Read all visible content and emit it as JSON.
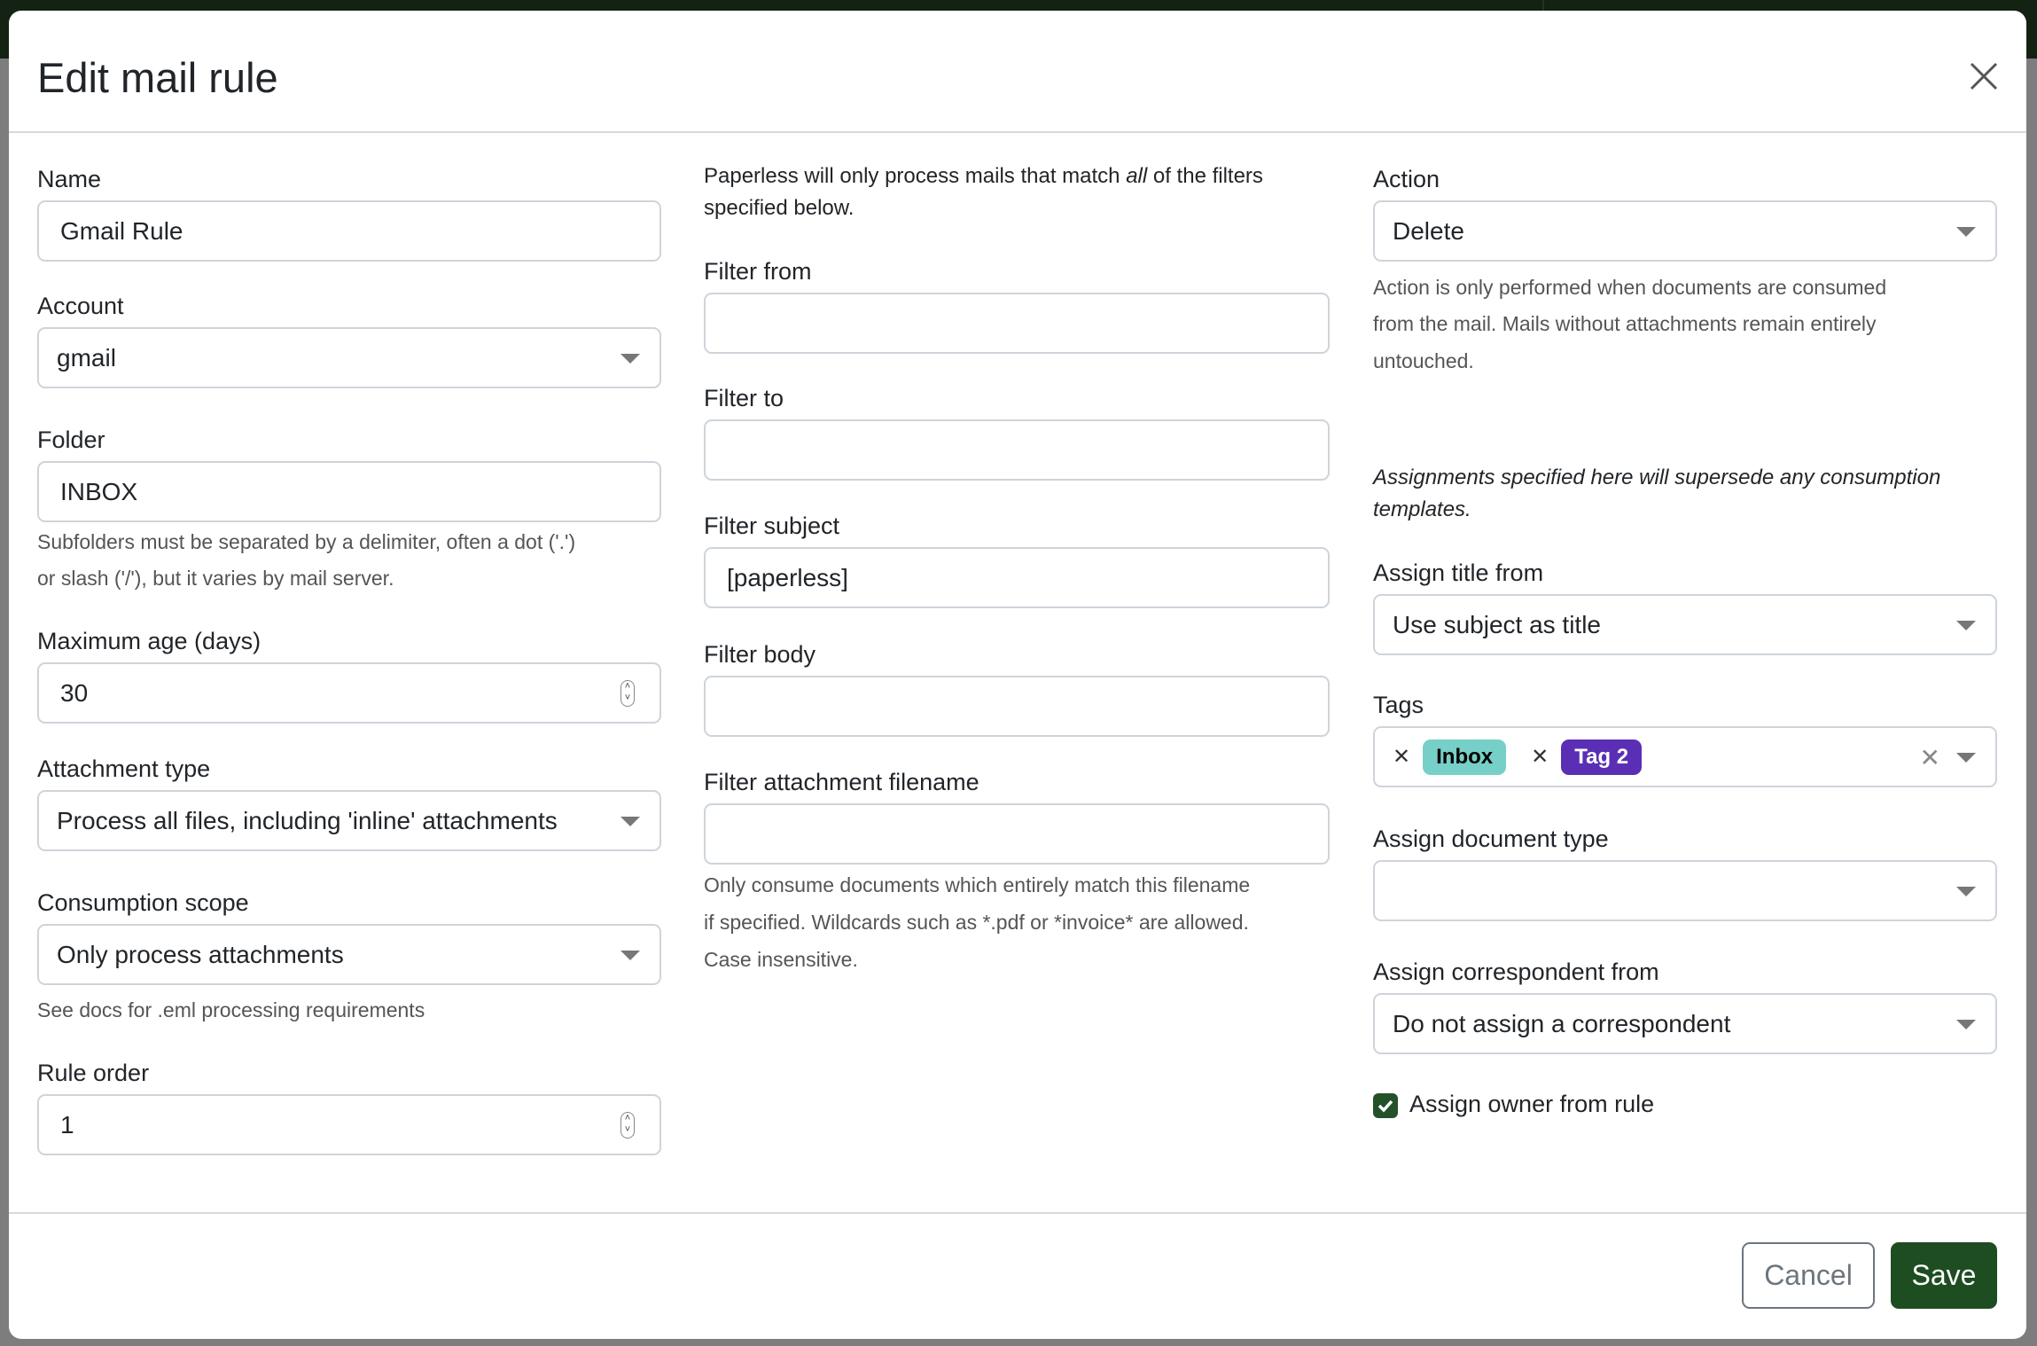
{
  "dialog": {
    "title": "Edit mail rule",
    "close_icon": "close-icon"
  },
  "col1": {
    "name": {
      "label": "Name",
      "value": "Gmail Rule"
    },
    "account": {
      "label": "Account",
      "value": "gmail"
    },
    "folder": {
      "label": "Folder",
      "value": "INBOX",
      "help1": "Subfolders must be separated by a delimiter, often a dot ('.')",
      "help2": "or slash ('/'), but it varies by mail server."
    },
    "max_age": {
      "label": "Maximum age (days)",
      "value": "30"
    },
    "attachment_type": {
      "label": "Attachment type",
      "value": "Process all files, including 'inline' attachments"
    },
    "consumption_scope": {
      "label": "Consumption scope",
      "value": "Only process attachments",
      "help": "See docs for .eml processing requirements"
    },
    "rule_order": {
      "label": "Rule order",
      "value": "1"
    }
  },
  "col2": {
    "intro_pre": "Paperless will only process mails that match ",
    "intro_em": "all",
    "intro_post": " of the filters",
    "intro2": "specified below.",
    "filter_from": {
      "label": "Filter from",
      "value": ""
    },
    "filter_to": {
      "label": "Filter to",
      "value": ""
    },
    "filter_subject": {
      "label": "Filter subject",
      "value": "[paperless]"
    },
    "filter_body": {
      "label": "Filter body",
      "value": ""
    },
    "filter_attachment": {
      "label": "Filter attachment filename",
      "value": "",
      "help1": "Only consume documents which entirely match this filename",
      "help2": "if specified. Wildcards such as *.pdf or *invoice* are allowed.",
      "help3": "Case insensitive."
    }
  },
  "col3": {
    "action": {
      "label": "Action",
      "value": "Delete",
      "help1": "Action is only performed when documents are consumed",
      "help2": "from the mail. Mails without attachments remain entirely",
      "help3": "untouched."
    },
    "note1": "Assignments specified here will supersede any consumption",
    "note2": "templates.",
    "assign_title": {
      "label": "Assign title from",
      "value": "Use subject as title"
    },
    "tags": {
      "label": "Tags",
      "items": [
        {
          "label": "Inbox",
          "bg": "#76d0c7",
          "fg": "#000000"
        },
        {
          "label": "Tag 2",
          "bg": "#5a2fb5",
          "fg": "#ffffff"
        }
      ]
    },
    "doc_type": {
      "label": "Assign document type",
      "value": ""
    },
    "correspondent": {
      "label": "Assign correspondent from",
      "value": "Do not assign a correspondent"
    },
    "owner": {
      "label": "Assign owner from rule",
      "checked": true
    }
  },
  "footer": {
    "cancel": "Cancel",
    "save": "Save"
  },
  "colors": {
    "primary": "#1e4d22",
    "checkbox": "#23512a"
  }
}
